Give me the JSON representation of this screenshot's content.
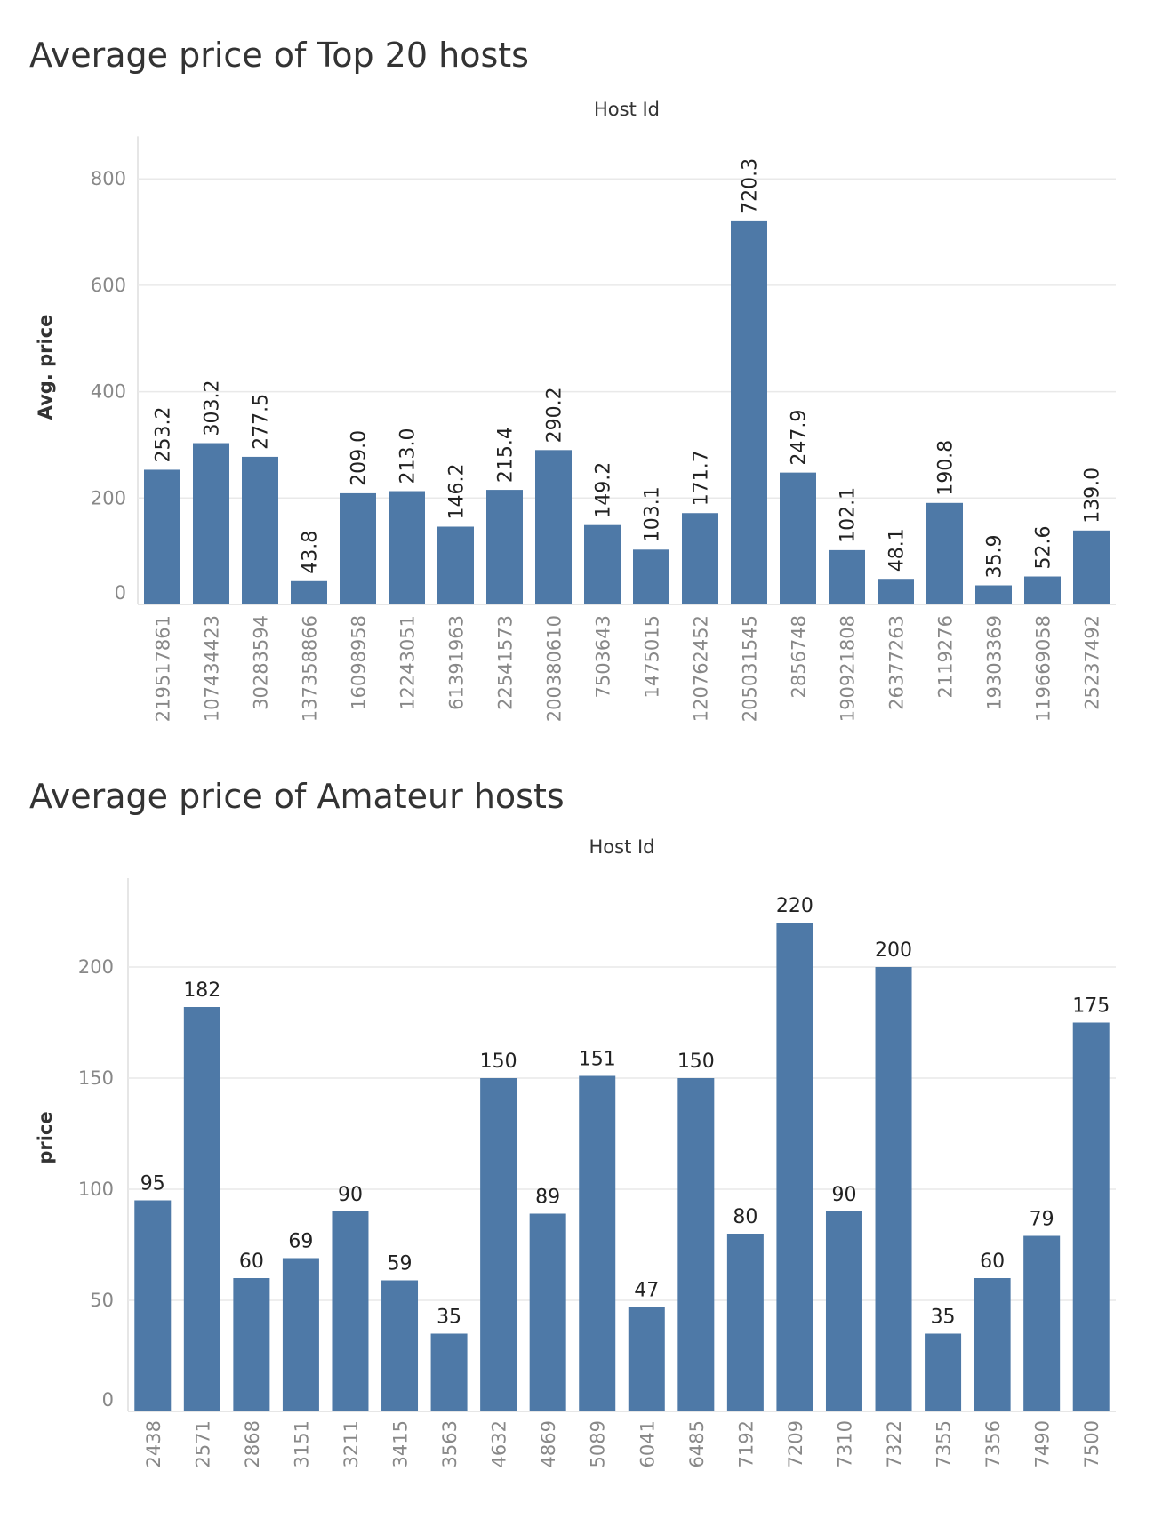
{
  "colors": {
    "bar": "#4e79a7",
    "grid": "#e9e9e9",
    "text": "#333333",
    "tick": "#888888"
  },
  "chart_data": [
    {
      "type": "bar",
      "title": "Average price of Top 20 hosts",
      "header": "Host Id",
      "xlabel": "",
      "ylabel": "Avg. price",
      "ylim": [
        0,
        880
      ],
      "yticks": [
        0,
        200,
        400,
        600,
        800
      ],
      "grid": true,
      "categories": [
        "219517861",
        "107434423",
        "30283594",
        "137358866",
        "16098958",
        "12243051",
        "61391963",
        "22541573",
        "200380610",
        "7503643",
        "1475015",
        "120762452",
        "205031545",
        "2856748",
        "190921808",
        "26377263",
        "2119276",
        "19303369",
        "119669058",
        "25237492"
      ],
      "values": [
        253.2,
        303.2,
        277.5,
        43.8,
        209.0,
        213.0,
        146.2,
        215.4,
        290.2,
        149.2,
        103.1,
        171.7,
        720.3,
        247.9,
        102.1,
        48.1,
        190.8,
        35.9,
        52.6,
        139.0
      ],
      "labels": [
        "253.2",
        "303.2",
        "277.5",
        "43.8",
        "209.0",
        "213.0",
        "146.2",
        "215.4",
        "290.2",
        "149.2",
        "103.1",
        "171.7",
        "720.3",
        "247.9",
        "102.1",
        "48.1",
        "190.8",
        "35.9",
        "52.6",
        "139.0"
      ]
    },
    {
      "type": "bar",
      "title": "Average price of Amateur hosts",
      "header": "Host Id",
      "xlabel": "",
      "ylabel": "price",
      "ylim": [
        0,
        240
      ],
      "yticks": [
        0,
        50,
        100,
        150,
        200
      ],
      "grid": true,
      "categories": [
        "2438",
        "2571",
        "2868",
        "3151",
        "3211",
        "3415",
        "3563",
        "4632",
        "4869",
        "5089",
        "6041",
        "6485",
        "7192",
        "7209",
        "7310",
        "7322",
        "7355",
        "7356",
        "7490",
        "7500"
      ],
      "values": [
        95,
        182,
        60,
        69,
        90,
        59,
        35,
        150,
        89,
        151,
        47,
        150,
        80,
        220,
        90,
        200,
        35,
        60,
        79,
        175
      ],
      "labels": [
        "95",
        "182",
        "60",
        "69",
        "90",
        "59",
        "35",
        "150",
        "89",
        "151",
        "47",
        "150",
        "80",
        "220",
        "90",
        "200",
        "35",
        "60",
        "79",
        "175"
      ]
    }
  ]
}
